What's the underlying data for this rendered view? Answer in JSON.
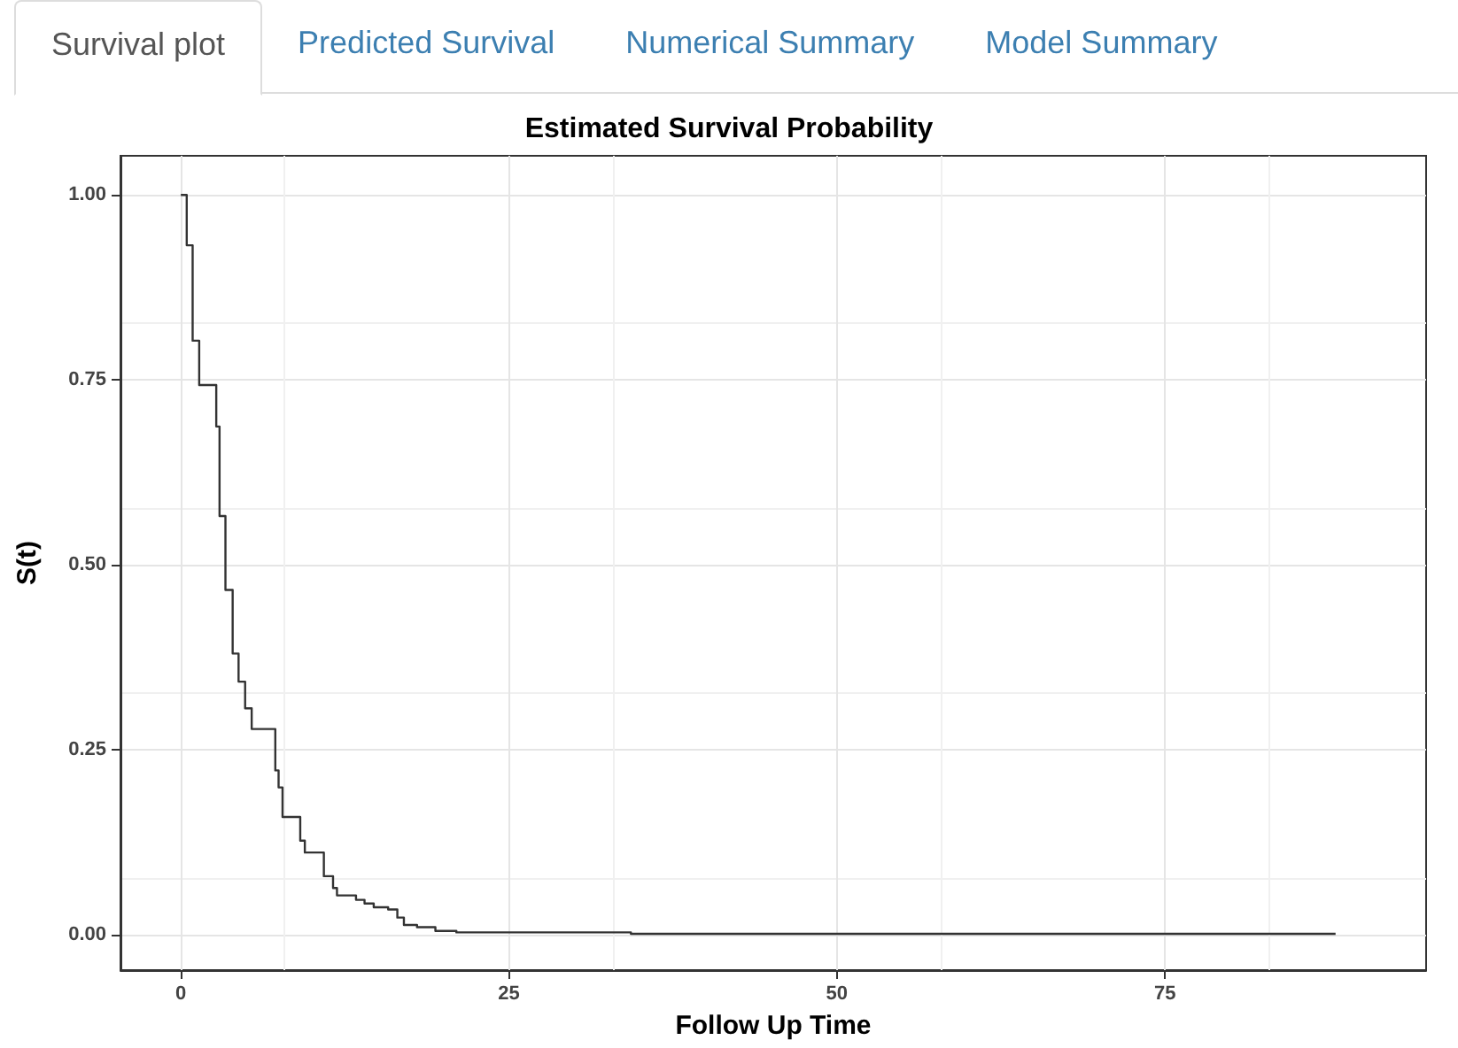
{
  "chart_data": {
    "type": "step",
    "title": "Estimated Survival Probability",
    "xlabel": "Follow Up Time",
    "ylabel": "S(t)",
    "annotations": [
      "Survival plot",
      "Predicted Survival",
      "Numerical Summary",
      "Model Summary"
    ],
    "x": [
      0,
      0.45,
      0.9,
      1.4,
      2.7,
      2.95,
      3.4,
      3.95,
      4.4,
      4.9,
      5.4,
      7.2,
      7.45,
      7.75,
      9.1,
      9.45,
      10.9,
      11.6,
      11.9,
      13.35,
      14,
      14.7,
      15.8,
      16.5,
      17,
      18,
      19.4,
      21,
      34.3,
      88
    ],
    "series": [
      {
        "color": "#333333",
        "values": [
          1,
          0.932,
          0.803,
          0.743,
          0.687,
          0.566,
          0.466,
          0.38,
          0.342,
          0.306,
          0.278,
          0.222,
          0.199,
          0.159,
          0.127,
          0.111,
          0.079,
          0.063,
          0.053,
          0.047,
          0.042,
          0.037,
          0.034,
          0.023,
          0.013,
          0.01,
          0.005,
          0.003,
          0.001,
          0.001
        ]
      }
    ],
    "xlim": [
      -4.6,
      94.9
    ],
    "xticks": [
      0,
      25,
      50,
      75
    ],
    "ylim": [
      -0.048,
      1.053
    ],
    "yticks": [
      {
        "value": 0,
        "label": "0.00"
      },
      {
        "value": 0.25,
        "label": "0.25"
      },
      {
        "value": 0.5,
        "label": "0.50"
      },
      {
        "value": 0.75,
        "label": "0.75"
      },
      {
        "value": 1,
        "label": "1.00"
      }
    ],
    "grid": true,
    "marker": "none",
    "line_style": "solid"
  }
}
